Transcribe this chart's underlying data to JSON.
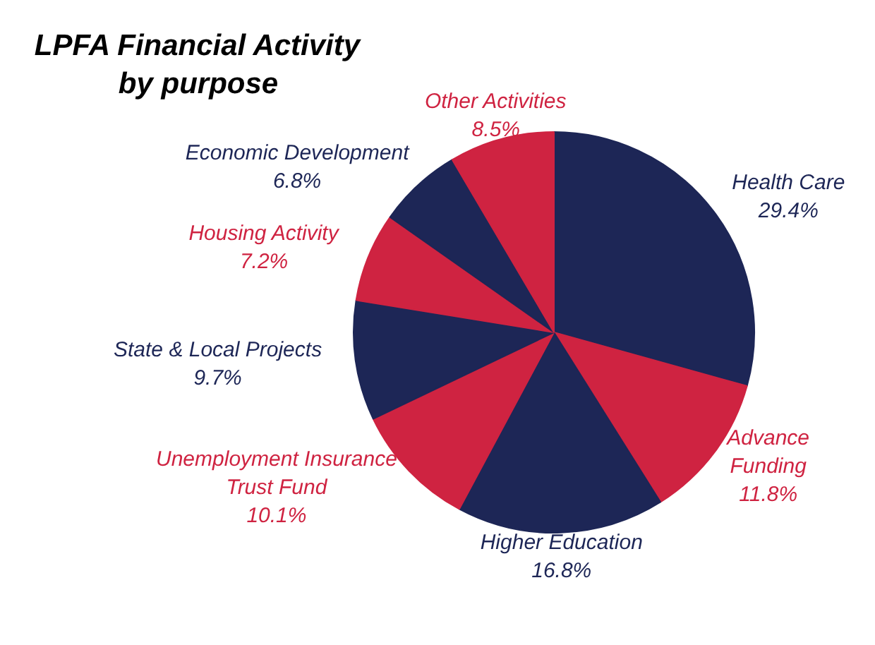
{
  "chart_data": {
    "type": "pie",
    "title": "LPFA Financial Activity by purpose",
    "categories": [
      "Health Care",
      "Advance Funding",
      "Higher Education",
      "Unemployment Insurance Trust Fund",
      "State & Local Projects",
      "Housing Activity",
      "Economic Development",
      "Other Activities"
    ],
    "values": [
      29.4,
      11.8,
      16.8,
      10.1,
      9.7,
      7.2,
      6.8,
      8.5
    ],
    "value_labels": [
      "29.4%",
      "11.8%",
      "16.8%",
      "10.1%",
      "9.7%",
      "7.2%",
      "6.8%",
      "8.5%"
    ],
    "colors": [
      "#1d2656",
      "#cf2341",
      "#1d2656",
      "#cf2341",
      "#1d2656",
      "#cf2341",
      "#1d2656",
      "#cf2341"
    ]
  }
}
